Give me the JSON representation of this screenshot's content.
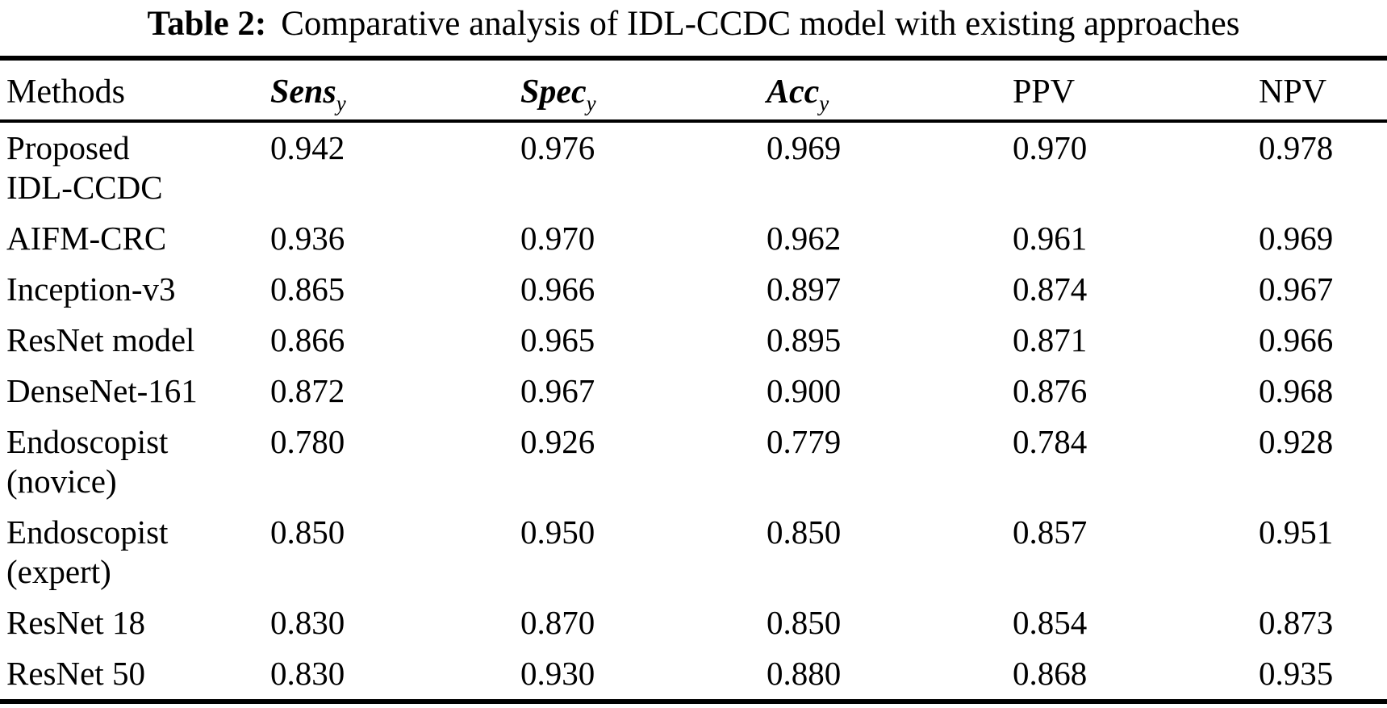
{
  "page": {
    "background_color": "#ffffff",
    "text_color": "#000000",
    "rule_color": "#000000"
  },
  "title": {
    "label": "Table 2:",
    "text": "Comparative analysis of IDL-CCDC model with existing approaches"
  },
  "table": {
    "columns": [
      {
        "label": "Methods",
        "style": "plain"
      },
      {
        "base": "Sens",
        "sub": "y",
        "style": "bold-italic-subscript"
      },
      {
        "base": "Spec",
        "sub": "y",
        "style": "bold-italic-subscript"
      },
      {
        "base": "Acc",
        "sub": "y",
        "style": "bold-italic-subscript"
      },
      {
        "label": "PPV",
        "style": "plain"
      },
      {
        "label": "NPV",
        "style": "plain"
      }
    ],
    "rows": [
      {
        "method": "Proposed\nIDL-CCDC",
        "sens": "0.942",
        "spec": "0.976",
        "acc": "0.969",
        "ppv": "0.970",
        "npv": "0.978"
      },
      {
        "method": "AIFM-CRC",
        "sens": "0.936",
        "spec": "0.970",
        "acc": "0.962",
        "ppv": "0.961",
        "npv": "0.969"
      },
      {
        "method": "Inception-v3",
        "sens": "0.865",
        "spec": "0.966",
        "acc": "0.897",
        "ppv": "0.874",
        "npv": "0.967"
      },
      {
        "method": "ResNet model",
        "sens": "0.866",
        "spec": "0.965",
        "acc": "0.895",
        "ppv": "0.871",
        "npv": "0.966"
      },
      {
        "method": "DenseNet-161",
        "sens": "0.872",
        "spec": "0.967",
        "acc": "0.900",
        "ppv": "0.876",
        "npv": "0.968"
      },
      {
        "method": "Endoscopist\n(novice)",
        "sens": "0.780",
        "spec": "0.926",
        "acc": "0.779",
        "ppv": "0.784",
        "npv": "0.928"
      },
      {
        "method": "Endoscopist\n(expert)",
        "sens": "0.850",
        "spec": "0.950",
        "acc": "0.850",
        "ppv": "0.857",
        "npv": "0.951"
      },
      {
        "method": "ResNet 18",
        "sens": "0.830",
        "spec": "0.870",
        "acc": "0.850",
        "ppv": "0.854",
        "npv": "0.873"
      },
      {
        "method": "ResNet 50",
        "sens": "0.830",
        "spec": "0.930",
        "acc": "0.880",
        "ppv": "0.868",
        "npv": "0.935"
      }
    ]
  }
}
